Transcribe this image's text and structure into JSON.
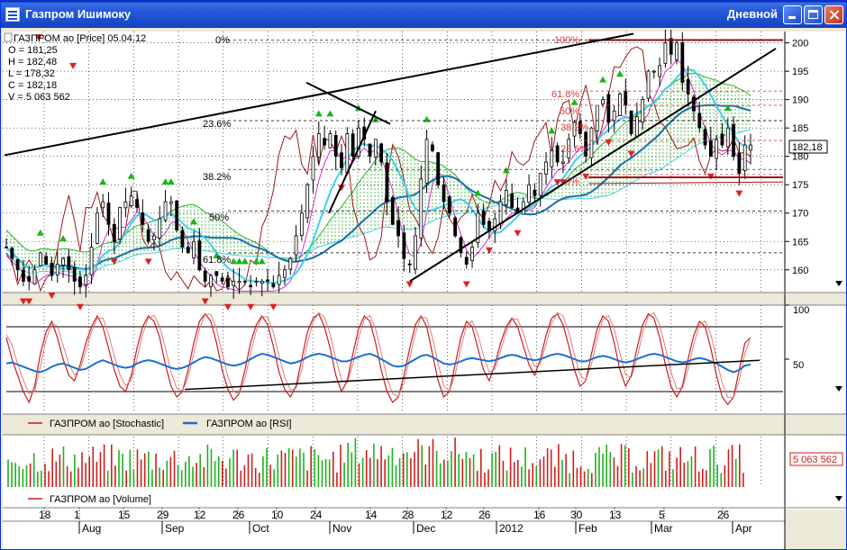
{
  "window": {
    "title": "Газпром Ишимоку",
    "period": "Дневной"
  },
  "colors": {
    "price": "#000000",
    "baseline": "#1a6fa8",
    "fast_ma": "#3fd0e8",
    "kumo_fill": "#22b022",
    "kumo_line": "#2fb02f",
    "lagging": "#9a1a1a",
    "envelope": "#cc33cc",
    "up_marker": "#19b619",
    "down_marker": "#e02020",
    "stochastic": "#c81e1e",
    "rsi": "#1a6fd2",
    "volume_up": "#cc1f1f",
    "volume_down": "#20b020",
    "fib": "#d84040"
  },
  "legend": {
    "symbol_line": "ГАЗПРОМ ао [Price] 05.04.12",
    "o": "O = 181,25",
    "h": "H = 182,48",
    "l": "L = 178,32",
    "c": "C = 182,18",
    "v": "V = 5 063 562"
  },
  "price_panel": {
    "fib_labels": [
      "0%",
      "23.6%",
      "38.2%",
      "50%",
      "61.8%",
      "100%"
    ],
    "fib_labels_right": [
      "100%",
      "61.8%",
      "50%",
      "38.2%",
      "23.6%",
      "0%"
    ],
    "last_price_tag": "182,18"
  },
  "indicator_legend": {
    "stochastic": "ГАЗПРОМ ао [Stochastic]",
    "rsi": "ГАЗПРОМ ао [RSI]"
  },
  "volume_legend": "ГАЗПРОМ ао [Volume]",
  "volume_tag": "5 063 562",
  "chart_data": [
    {
      "type": "candlestick",
      "title": "ГАЗПРОМ ао [Price]",
      "y_ticks": [
        160,
        165,
        170,
        175,
        180,
        185,
        190,
        195,
        200
      ],
      "ylim": [
        156,
        202
      ],
      "x_tick_labels": [
        "18",
        "1",
        "15",
        "29",
        "12",
        "26",
        "10",
        "24",
        "14",
        "28",
        "12",
        "26",
        "16",
        "30",
        "13",
        "5",
        "26"
      ],
      "month_labels": [
        "Aug",
        "Sep",
        "Oct",
        "Nov",
        "Dec",
        "2012",
        "Feb",
        "Mar",
        "Apr"
      ],
      "close": [
        164,
        162,
        160,
        158,
        158,
        160,
        163,
        161,
        159,
        161,
        162,
        160,
        158,
        157,
        159,
        164,
        170,
        172,
        168,
        165,
        171,
        172,
        173,
        171,
        168,
        165,
        166,
        169,
        172,
        172,
        167,
        164,
        163,
        165,
        160,
        158,
        159,
        159,
        158,
        157,
        158,
        158,
        158,
        157,
        158,
        158,
        158,
        157,
        159,
        160,
        162,
        166,
        170,
        175,
        180,
        184,
        182,
        184,
        180,
        178,
        184,
        180,
        185,
        183,
        180,
        183,
        179,
        172,
        168,
        166,
        162,
        161,
        166,
        176,
        183,
        181,
        175,
        172,
        170,
        166,
        163,
        161,
        164,
        170,
        168,
        167,
        169,
        172,
        174,
        171,
        170,
        172,
        175,
        173,
        177,
        179,
        181,
        179,
        179,
        183,
        186,
        184,
        180,
        185,
        189,
        190,
        186,
        188,
        191,
        189,
        184,
        187,
        190,
        195,
        195,
        196,
        200,
        198,
        200,
        193,
        191,
        188,
        185,
        182,
        180,
        183,
        182,
        185,
        180,
        177,
        182,
        182
      ],
      "last_close": 182.18,
      "horizontal_levels": [
        200.5,
        176.3
      ],
      "fib_levels_right": [
        200.5,
        191.5,
        189,
        186.3,
        182.8,
        176.8
      ],
      "up_markers_approx": [
        180,
        179,
        172,
        167,
        186,
        187,
        189,
        181,
        176,
        179,
        184,
        187,
        196,
        194,
        197,
        201,
        186,
        187
      ],
      "down_markers_approx": [
        201,
        196,
        160,
        161,
        180,
        171,
        162,
        158,
        160,
        177,
        180,
        186,
        187,
        179,
        176
      ]
    },
    {
      "type": "line",
      "title": "Stochastic / RSI",
      "series": [
        {
          "name": "ГАЗПРОМ ао [Stochastic]"
        },
        {
          "name": "ГАЗПРОМ ао [RSI]"
        }
      ],
      "y_ticks": [
        50,
        100
      ],
      "ylim": [
        0,
        100
      ],
      "stochastic": [
        70,
        50,
        35,
        20,
        10,
        25,
        55,
        75,
        85,
        70,
        50,
        35,
        30,
        45,
        65,
        80,
        90,
        80,
        60,
        40,
        25,
        20,
        35,
        60,
        80,
        90,
        85,
        70,
        45,
        25,
        15,
        20,
        40,
        65,
        85,
        92,
        85,
        65,
        40,
        22,
        12,
        18,
        40,
        65,
        82,
        90,
        82,
        62,
        38,
        22,
        15,
        25,
        50,
        75,
        88,
        92,
        80,
        60,
        35,
        20,
        30,
        55,
        78,
        90,
        85,
        65,
        40,
        20,
        10,
        15,
        35,
        60,
        82,
        90,
        80,
        55,
        30,
        15,
        20,
        45,
        70,
        85,
        80,
        60,
        40,
        30,
        45,
        65,
        80,
        88,
        80,
        62,
        45,
        35,
        50,
        72,
        88,
        92,
        82,
        62,
        40,
        25,
        30,
        55,
        78,
        90,
        85,
        65,
        40,
        25,
        35,
        60,
        82,
        92,
        88,
        70,
        45,
        25,
        15,
        25,
        50,
        72,
        85,
        80,
        60,
        35,
        15,
        8,
        15,
        40,
        65,
        70
      ],
      "rsi": [
        46,
        47,
        45,
        43,
        41,
        39,
        38,
        40,
        43,
        45,
        46,
        44,
        42,
        40,
        41,
        44,
        47,
        49,
        47,
        45,
        43,
        42,
        43,
        46,
        48,
        49,
        48,
        46,
        44,
        42,
        41,
        42,
        44,
        47,
        50,
        52,
        51,
        49,
        47,
        45,
        44,
        45,
        47,
        50,
        53,
        55,
        54,
        52,
        50,
        48,
        46,
        47,
        49,
        52,
        54,
        55,
        54,
        52,
        50,
        48,
        48,
        50,
        52,
        54,
        55,
        53,
        50,
        47,
        44,
        43,
        44,
        47,
        50,
        53,
        54,
        52,
        49,
        46,
        45,
        46,
        48,
        50,
        51,
        50,
        49,
        48,
        49,
        51,
        53,
        54,
        53,
        51,
        50,
        49,
        50,
        52,
        54,
        55,
        54,
        52,
        50,
        48,
        48,
        50,
        52,
        53,
        52,
        50,
        48,
        47,
        48,
        50,
        52,
        54,
        55,
        54,
        52,
        50,
        48,
        47,
        48,
        50,
        51,
        50,
        48,
        46,
        43,
        40,
        38,
        40,
        44,
        45
      ],
      "trendline": [
        [
          0.24,
          22
        ],
        [
          1.0,
          49
        ]
      ],
      "horizontal_levels": [
        80,
        20
      ]
    },
    {
      "type": "bar",
      "title": "ГАЗПРОМ ао [Volume]",
      "last_value": 5063562
    }
  ]
}
